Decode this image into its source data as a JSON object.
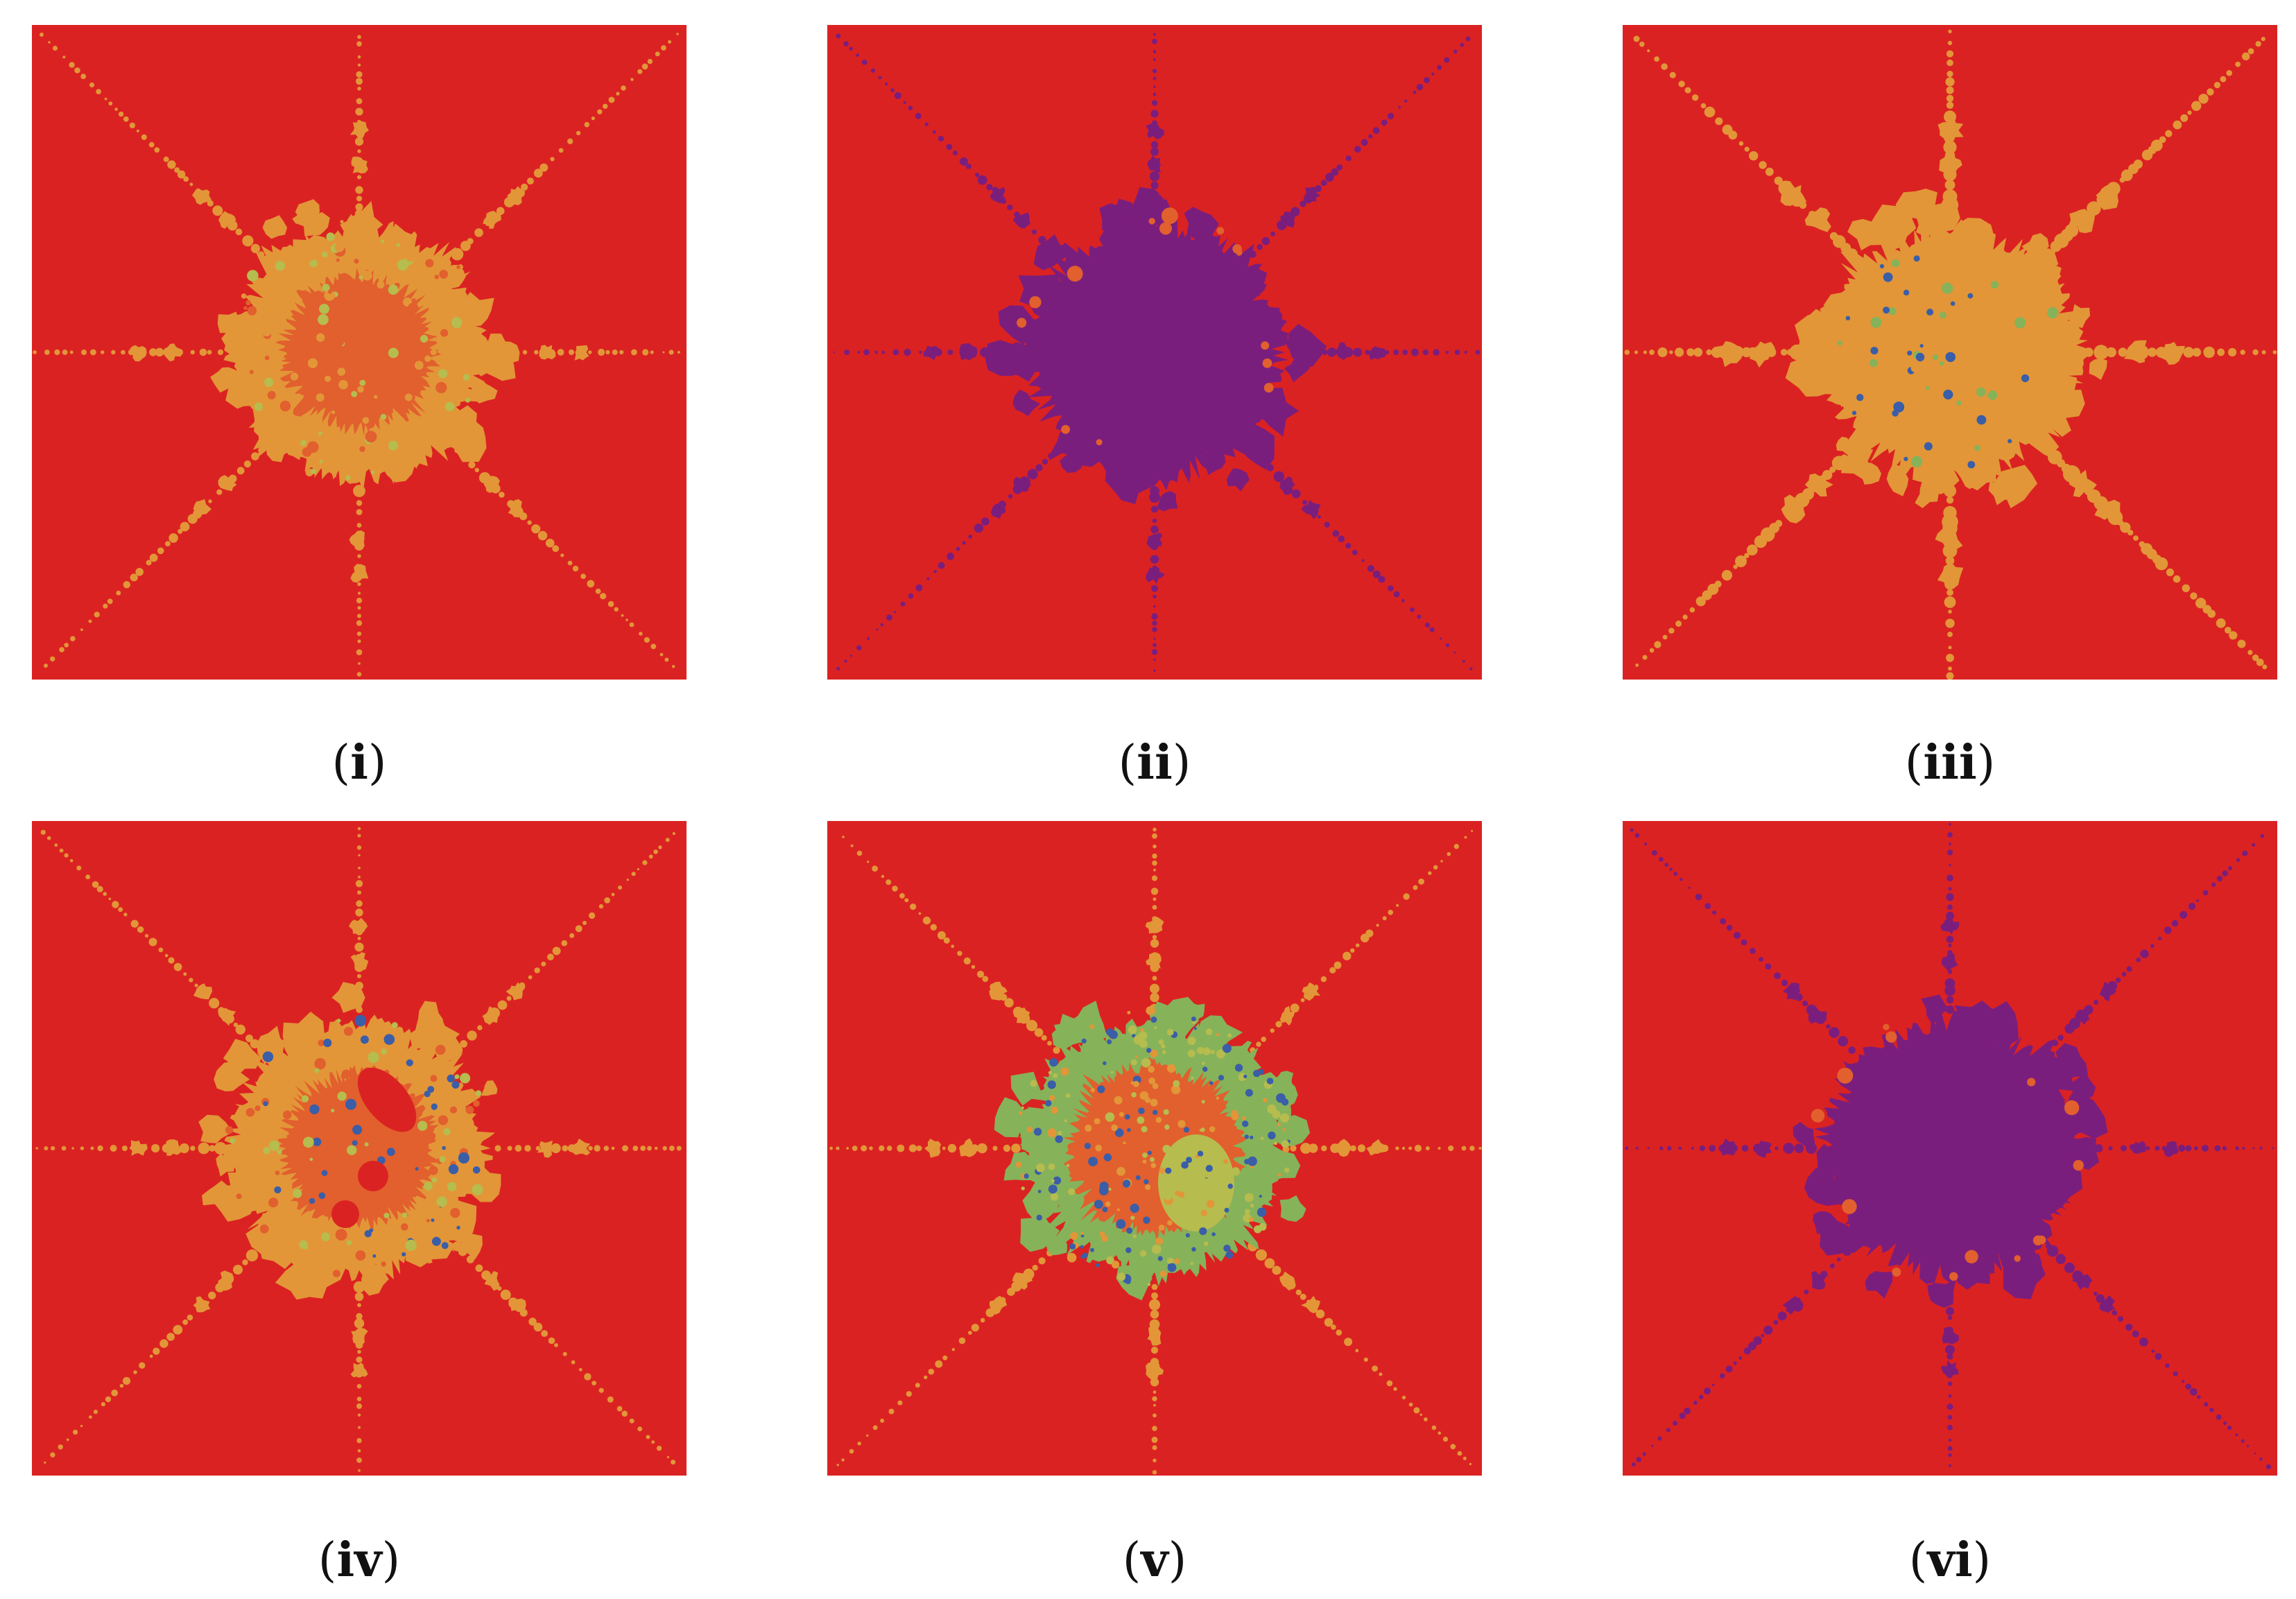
{
  "panels": [
    {
      "label": "i",
      "scheme": "orange-core"
    },
    {
      "label": "ii",
      "scheme": "purple-core"
    },
    {
      "label": "iii",
      "scheme": "gold-core"
    },
    {
      "label": "iv",
      "scheme": "orange-holes"
    },
    {
      "label": "v",
      "scheme": "green-core"
    },
    {
      "label": "vi",
      "scheme": "purple-core"
    }
  ],
  "colors": {
    "background": "#db2222",
    "orange": "#e25f2e",
    "gold": "#e29638",
    "yellow_green": "#b6bc4e",
    "green": "#86b25a",
    "purple": "#7a1e7e",
    "blue": "#3a5ea8"
  }
}
